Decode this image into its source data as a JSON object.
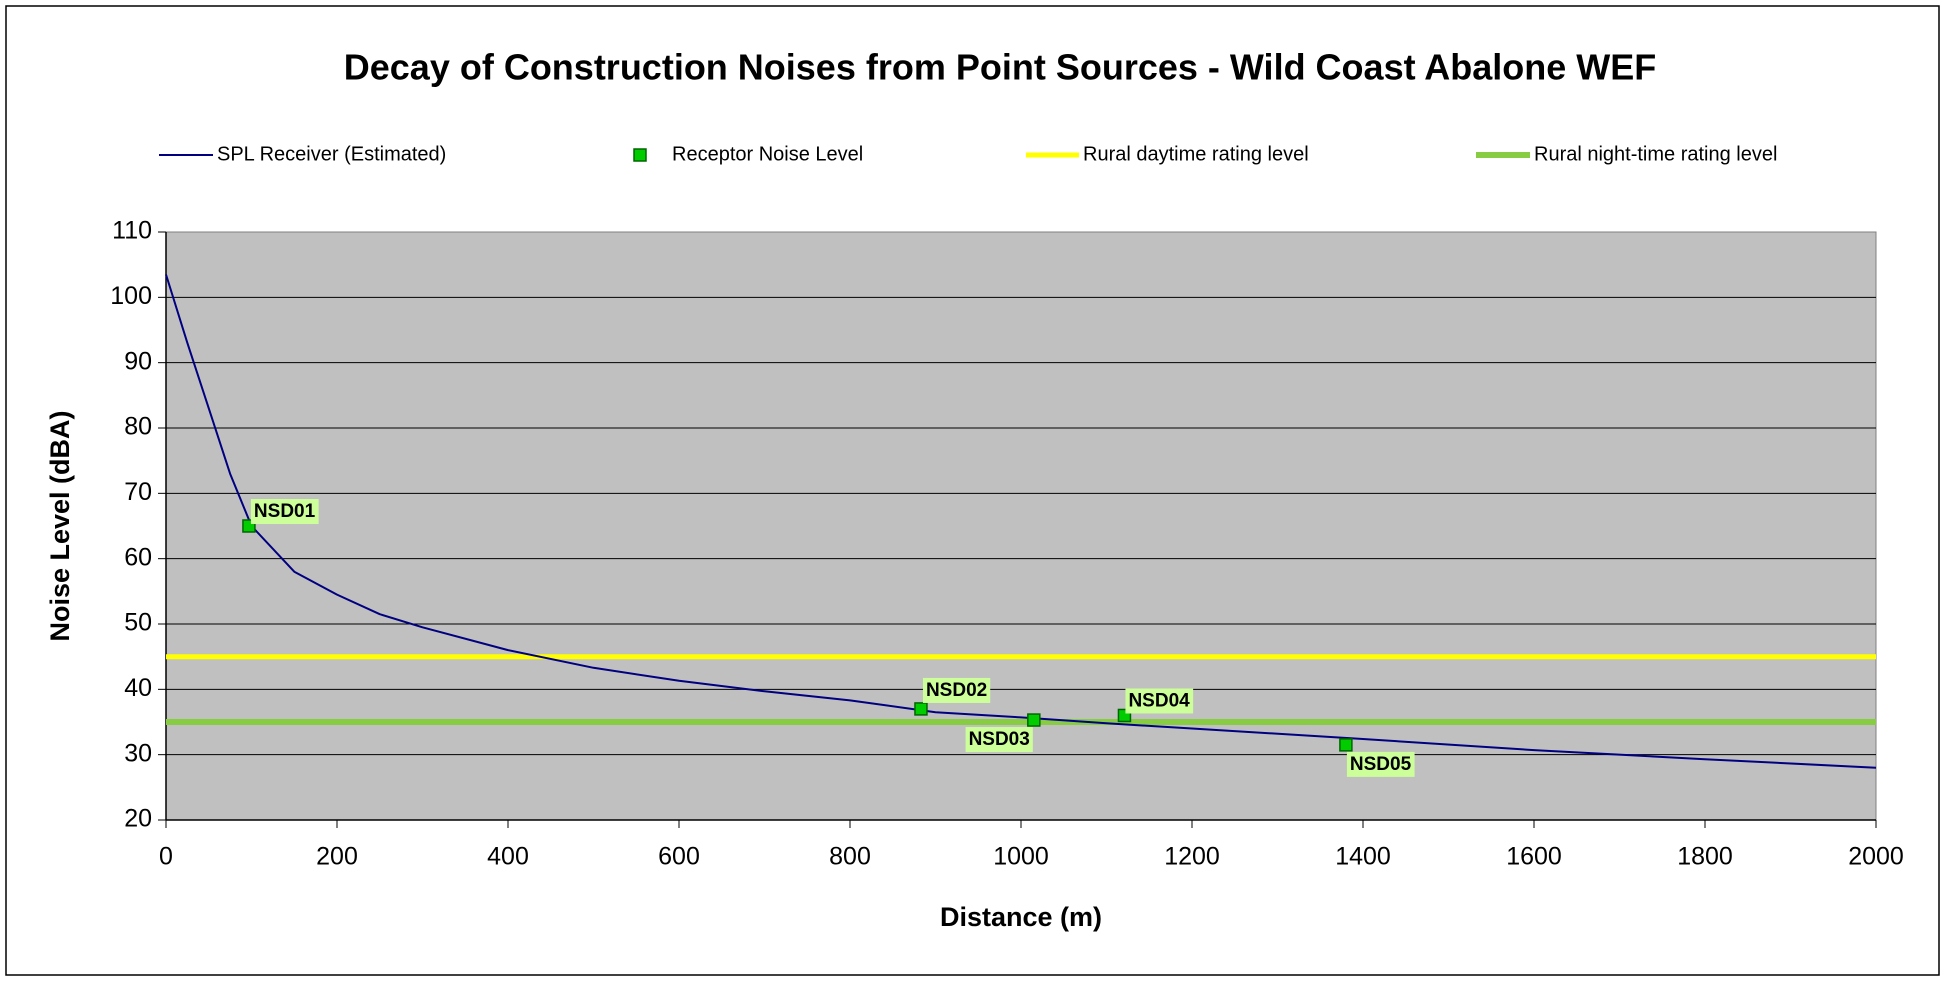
{
  "chart_data": {
    "type": "line",
    "title": "Decay of Construction Noises from Point Sources - Wild Coast Abalone WEF",
    "xlabel": "Distance  (m)",
    "ylabel": "Noise Level (dBA)",
    "xlim": [
      0,
      2000
    ],
    "xticks": [
      0,
      200,
      400,
      600,
      800,
      1000,
      1200,
      1400,
      1600,
      1800,
      2000
    ],
    "ylim": [
      20,
      110
    ],
    "yticks": [
      20,
      30,
      40,
      50,
      60,
      70,
      80,
      90,
      100,
      110
    ],
    "grid": true,
    "legend": "top",
    "series": [
      {
        "name": "SPL Receiver (Estimated)",
        "type": "line",
        "color": "#000080",
        "x": [
          0,
          25,
          50,
          75,
          100,
          150,
          200,
          250,
          300,
          400,
          500,
          600,
          700,
          800,
          900,
          1000,
          1100,
          1200,
          1400,
          1600,
          1800,
          2000
        ],
        "values": [
          103.5,
          93,
          83,
          73,
          65,
          58,
          54.5,
          51.5,
          49.5,
          46,
          43.3,
          41.3,
          39.7,
          38.3,
          36.5,
          35.7,
          34.8,
          34,
          32.4,
          30.7,
          29.3,
          28
        ]
      },
      {
        "name": "Receptor Noise Level",
        "type": "scatter",
        "color": "#00cc00",
        "x": [
          97,
          883,
          1015,
          1121,
          1380
        ],
        "values": [
          65,
          37,
          35.3,
          36,
          31.5
        ],
        "labels": [
          "NSD01",
          "NSD02",
          "NSD03",
          "NSD04",
          "NSD05"
        ]
      },
      {
        "name": "Rural daytime rating level",
        "type": "line",
        "color": "#ffff00",
        "x": [
          0,
          2000
        ],
        "values": [
          45,
          45
        ]
      },
      {
        "name": "Rural night-time rating level",
        "type": "line",
        "color": "#88cc44",
        "x": [
          0,
          2000
        ],
        "values": [
          35,
          35
        ]
      }
    ]
  }
}
